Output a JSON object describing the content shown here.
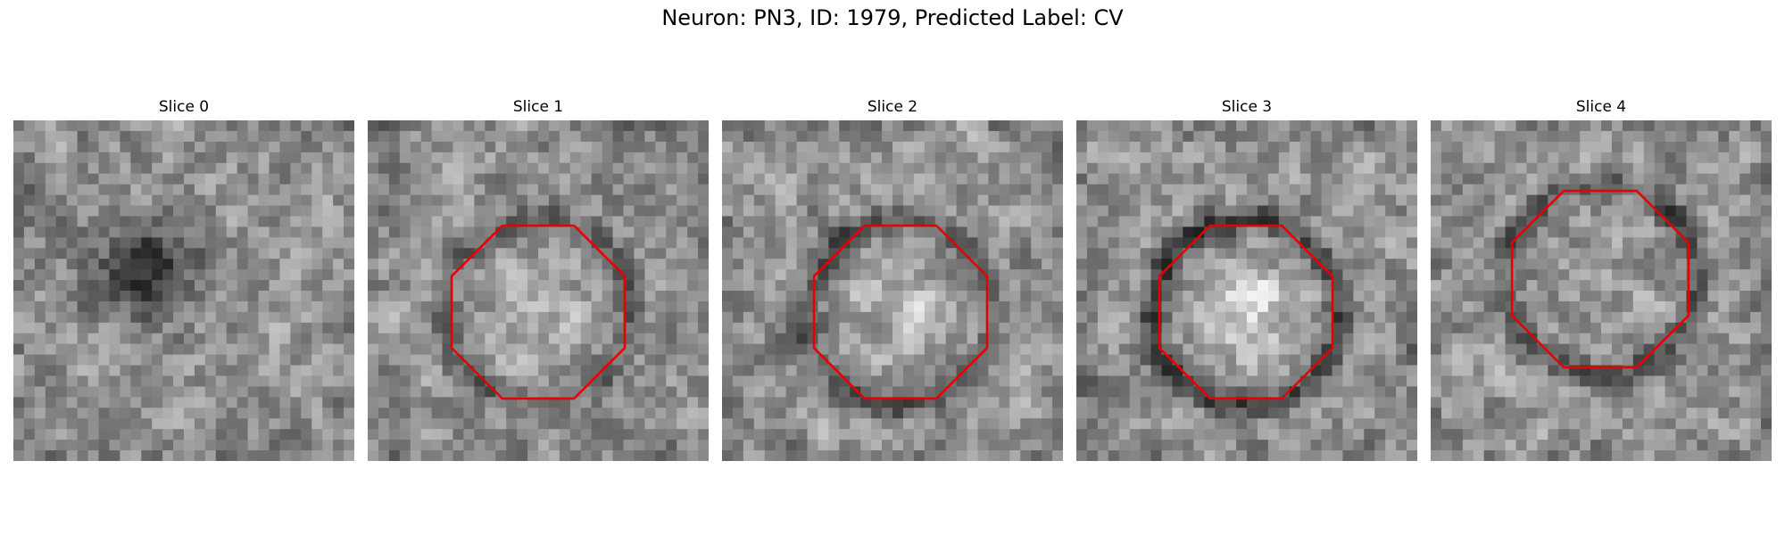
{
  "figure": {
    "title": "Neuron: PN3, ID: 1979, Predicted Label: CV"
  },
  "panels": [
    {
      "title": "Slice 0",
      "has_contour": false,
      "contour_color": "#e60000",
      "ring_dark": 0.0,
      "center_bright": 0.0
    },
    {
      "title": "Slice 1",
      "has_contour": true,
      "contour_color": "#e60000",
      "ring_dark": 0.35,
      "center_bright": 0.12
    },
    {
      "title": "Slice 2",
      "has_contour": true,
      "contour_color": "#e60000",
      "ring_dark": 0.45,
      "center_bright": 0.22
    },
    {
      "title": "Slice 3",
      "has_contour": true,
      "contour_color": "#e60000",
      "ring_dark": 0.6,
      "center_bright": 0.35
    },
    {
      "title": "Slice 4",
      "has_contour": true,
      "contour_color": "#e60000",
      "ring_dark": 0.45,
      "center_bright": 0.05
    }
  ],
  "colors": {
    "contour": "#e60000"
  }
}
